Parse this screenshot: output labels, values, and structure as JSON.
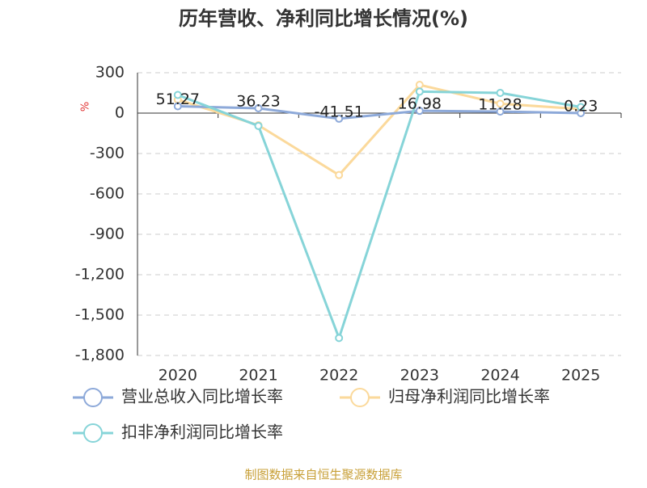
{
  "chart_data": {
    "type": "line",
    "title": "历年营收、净利同比增长情况(%)",
    "y_label": "%",
    "categories": [
      "2020",
      "2021",
      "2022",
      "2023",
      "2024",
      "2025"
    ],
    "series": [
      {
        "name": "营业总收入同比增长率",
        "color": "#8da9d9",
        "values": [
          51.27,
          36.23,
          -41.51,
          16.98,
          11.28,
          0.23
        ]
      },
      {
        "name": "归母净利润同比增长率",
        "color": "#fbd99b",
        "values": [
          100,
          -90,
          -460,
          210,
          70,
          30
        ]
      },
      {
        "name": "扣非净利润同比增长率",
        "color": "#86d4d8",
        "values": [
          135,
          -95,
          -1670,
          160,
          150,
          45
        ]
      }
    ],
    "ylim": [
      -1800,
      300
    ],
    "yticks": [
      300,
      0,
      -300,
      -600,
      -900,
      {
        "value": -1200,
        "label": "-1,200"
      },
      {
        "value": -1500,
        "label": "-1,500"
      },
      {
        "value": -1800,
        "label": "-1,800"
      }
    ],
    "grid": true,
    "source": "制图数据来自恒生聚源数据库"
  }
}
